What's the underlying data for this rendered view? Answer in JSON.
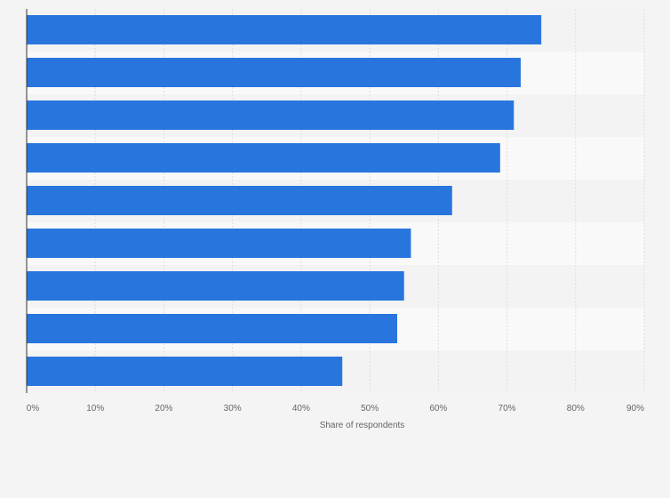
{
  "chart_data": {
    "type": "bar",
    "orientation": "horizontal",
    "categories": [
      "",
      "",
      "",
      "",
      "",
      "",
      "",
      "",
      ""
    ],
    "values": [
      75,
      72,
      71,
      69,
      62,
      56,
      55,
      54,
      46
    ],
    "xlabel": "Share of respondents",
    "xlim": [
      0,
      90
    ],
    "x_ticks": [
      "0%",
      "10%",
      "20%",
      "30%",
      "40%",
      "50%",
      "60%",
      "70%",
      "80%",
      "90%"
    ],
    "grid": true,
    "colors": {
      "bar": "#2876dd",
      "band_light": "#f9f9f9",
      "band_dark": "#f3f3f3",
      "background": "#f4f4f4",
      "grid": "#dddddd",
      "axis": "#333333"
    }
  }
}
